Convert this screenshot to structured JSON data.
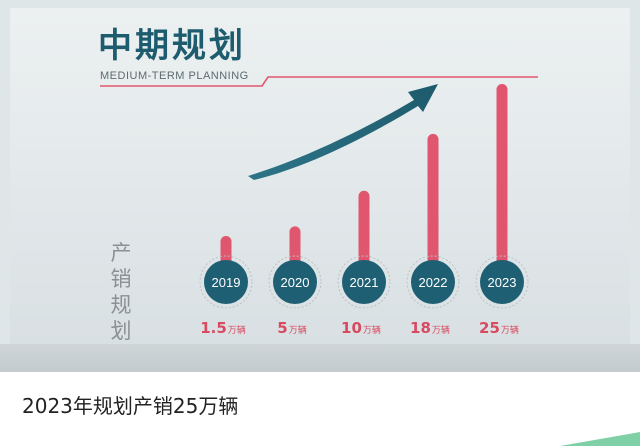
{
  "caption": "2023年规划产销25万辆",
  "chart_data": {
    "type": "bar",
    "title": "中期规划",
    "subtitle": "MEDIUM-TERM PLANNING",
    "ylabel": "产销规划",
    "xlabel": "",
    "unit": "万辆",
    "categories": [
      "2019",
      "2020",
      "2021",
      "2022",
      "2023"
    ],
    "values": [
      1.5,
      5,
      10,
      18,
      25
    ],
    "value_number_labels": [
      "1.5",
      "5",
      "10",
      "18",
      "25"
    ],
    "ylim": [
      0,
      25
    ],
    "grid": false,
    "legend": "none"
  },
  "colors": {
    "bar": "#e0566e",
    "circle": "#1f5f73",
    "title": "#1d5c6e",
    "value_label": "#d84a60",
    "arrow": "#23657a",
    "rule_line": "#e0566e"
  }
}
